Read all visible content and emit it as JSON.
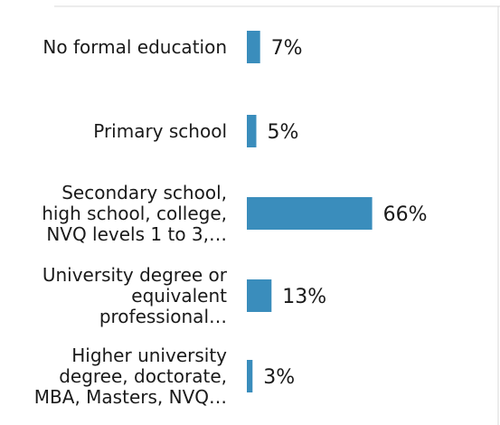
{
  "chart_data": {
    "type": "bar",
    "orientation": "horizontal",
    "title": "",
    "xlabel": "",
    "ylabel": "",
    "categories": [
      [
        "No formal education"
      ],
      [
        "Primary school"
      ],
      [
        "Secondary school,",
        "high school, college,",
        "NVQ levels 1 to 3,…"
      ],
      [
        "University degree or",
        "equivalent",
        "professional…"
      ],
      [
        "Higher university",
        "degree, doctorate,",
        "MBA, Masters, NVQ…"
      ]
    ],
    "values": [
      7,
      5,
      66,
      13,
      3
    ],
    "value_labels": [
      "7%",
      "5%",
      "66%",
      "13%",
      "3%"
    ],
    "unit": "%",
    "xlim": [
      0,
      100
    ],
    "grid": false,
    "legend": "none",
    "bar_color": "#3a8dbc",
    "border_color": "#d8d8d8"
  }
}
